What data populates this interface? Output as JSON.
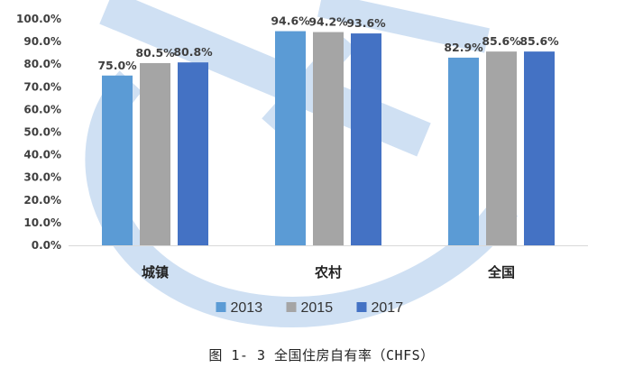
{
  "caption": "图 1- 3 全国住房自有率（CHFS）",
  "colors": {
    "series": [
      "#5b9bd5",
      "#a5a5a5",
      "#4472c4"
    ],
    "axis": "#d9d9d9",
    "watermark": "#cfe0f3"
  },
  "chart_data": {
    "type": "bar",
    "title": "",
    "xlabel": "",
    "ylabel": "",
    "categories": [
      "城镇",
      "农村",
      "全国"
    ],
    "series": [
      {
        "name": "2013",
        "values": [
          75.0,
          94.6,
          82.9
        ],
        "labels": [
          "75.0%",
          "94.6%",
          "82.9%"
        ]
      },
      {
        "name": "2015",
        "values": [
          80.5,
          94.2,
          85.6
        ],
        "labels": [
          "80.5%",
          "94.2%",
          "85.6%"
        ]
      },
      {
        "name": "2017",
        "values": [
          80.8,
          93.6,
          85.6
        ],
        "labels": [
          "80.8%",
          "93.6%",
          "85.6%"
        ]
      }
    ],
    "ylim": [
      0,
      100
    ],
    "yticks": [
      "0.0%",
      "10.0%",
      "20.0%",
      "30.0%",
      "40.0%",
      "50.0%",
      "60.0%",
      "70.0%",
      "80.0%",
      "90.0%",
      "100.0%"
    ],
    "grid": false,
    "legend": "bottom"
  }
}
